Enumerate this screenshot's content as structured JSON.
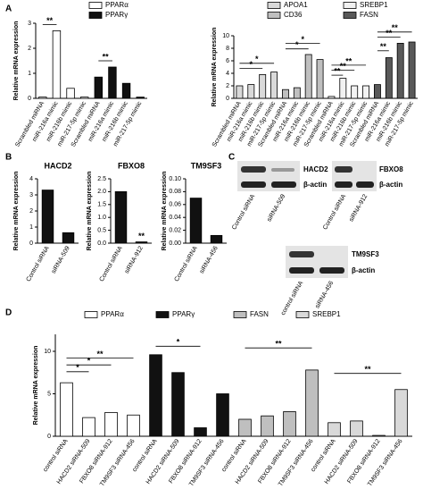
{
  "panels": [
    "A",
    "B",
    "C",
    "D"
  ],
  "blots": [
    {
      "target": "HACD2",
      "control": "β-actin",
      "lanes": [
        "Control siRNA",
        "siRNA-509"
      ]
    },
    {
      "target": "FBXO8",
      "control": "β-actin",
      "lanes": [
        "Control siRNA",
        "siRNA-912"
      ]
    },
    {
      "target": "TM9SF3",
      "control": "β-actin",
      "lanes": [
        "control siRNA",
        "siRNA-456"
      ]
    }
  ],
  "chart_data": [
    {
      "type": "bar",
      "y_label": "Relative mRNA expression",
      "categories": [
        "Scrambled miRNA",
        "miR-216a mimic",
        "miR-216b mimic",
        "miR-217-5p mimic",
        "Scrambled miRNA",
        "miR-216a mimic",
        "miR-216b mimic",
        "miR-217-5p mimic"
      ],
      "series": [
        {
          "name": "PPARα",
          "color": "#ffffff",
          "values": [
            0.05,
            2.7,
            0.4,
            0.05,
            null,
            null,
            null,
            null
          ]
        },
        {
          "name": "PPARγ",
          "color": "#111111",
          "values": [
            null,
            null,
            null,
            null,
            0.85,
            1.25,
            0.6,
            0.05
          ]
        }
      ],
      "ylim": [
        0,
        3
      ],
      "yticks": [
        0,
        1,
        2,
        3
      ],
      "annotations": [
        "**",
        "**"
      ]
    },
    {
      "type": "bar",
      "y_label": "Relative mRNA expression",
      "categories": [
        "Scrambled miRNA",
        "miR-216a mimic",
        "miR-216b mimic",
        "miR-217-5p mimic",
        "Scrambled miRNA",
        "miR-216a mimic",
        "miR-216b mimic",
        "miR-217-5p mimic",
        "Scrambled miRNA",
        "miR-216a mimic",
        "miR-216b mimic",
        "miR-217-5p mimic",
        "Scrambled miRNA",
        "miR-216a mimic",
        "miR-216b mimic",
        "miR-217-5p mimic"
      ],
      "series": [
        {
          "name": "APOA1",
          "color": "#d9d9d9",
          "values": [
            2,
            2.2,
            3.8,
            4.2,
            null,
            null,
            null,
            null,
            null,
            null,
            null,
            null,
            null,
            null,
            null,
            null
          ]
        },
        {
          "name": "CD36",
          "color": "#bfbfbf",
          "values": [
            null,
            null,
            null,
            null,
            1.4,
            1.7,
            7,
            6.2,
            null,
            null,
            null,
            null,
            null,
            null,
            null,
            null
          ]
        },
        {
          "name": "SREBP1",
          "color": "#f2f2f2",
          "values": [
            null,
            null,
            null,
            null,
            null,
            null,
            null,
            null,
            0.3,
            3.2,
            2,
            2,
            null,
            null,
            null,
            null
          ]
        },
        {
          "name": "FASN",
          "color": "#595959",
          "values": [
            null,
            null,
            null,
            null,
            null,
            null,
            null,
            null,
            null,
            null,
            null,
            null,
            2.2,
            6.5,
            8.8,
            9
          ]
        }
      ],
      "ylim": [
        0,
        10
      ],
      "yticks": [
        0,
        2,
        4,
        6,
        8,
        10
      ],
      "annotations": [
        "*",
        "*",
        "*",
        "*",
        "**",
        "**",
        "**",
        "**",
        "**",
        "**"
      ]
    },
    {
      "type": "bar",
      "title": "HACD2",
      "y_label": "Relative mRNA expression",
      "categories": [
        "Control siRNA",
        "siRNA-509"
      ],
      "values": [
        3.3,
        0.65
      ],
      "color": "#111111",
      "ylim": [
        0,
        4
      ],
      "yticks": [
        0,
        1,
        2,
        3,
        4
      ],
      "annotations": []
    },
    {
      "type": "bar",
      "title": "FBXO8",
      "y_label": "Relative mRNA expression",
      "categories": [
        "Control siRNA",
        "siRNA-912"
      ],
      "values": [
        2.0,
        0.05
      ],
      "color": "#111111",
      "ylim": [
        0,
        2.5
      ],
      "yticks": [
        {
          "value": 0,
          "label": "0.0"
        },
        0.5,
        {
          "value": 1,
          "label": "1.0"
        },
        1.5,
        {
          "value": 2,
          "label": "2.0"
        },
        2.5
      ],
      "annotations": [
        "**"
      ]
    },
    {
      "type": "bar",
      "title": "TM9SF3",
      "y_label": "Relative mRNA expression",
      "categories": [
        "Control siRNA",
        "siRNA-456"
      ],
      "values": [
        0.07,
        0.012
      ],
      "color": "#111111",
      "ylim": [
        0,
        0.1
      ],
      "yticks": [
        {
          "value": 0,
          "label": "0.00"
        },
        0.02,
        0.04,
        0.06,
        0.08,
        {
          "value": 0.1,
          "label": "0.10"
        }
      ],
      "annotations": []
    },
    {
      "type": "bar",
      "y_label": "Relative mRNA expression",
      "categories": [
        "control siRNA",
        "HACD2 siRNA-509",
        "FBXO8 siRNA-912",
        "TM9SF3 siRNA-456",
        "control siRNA",
        "HACD2 siRNA-509",
        "FBXO8 siRNA-912",
        "TM9SF3 siRNA-456",
        "control siRNA",
        "HACD2 siRNA-509",
        "FBXO8 siRNA-912",
        "TM9SF3 siRNA-456",
        "control siRNA",
        "HACD2 siRNA-509",
        "FBXO8 siRNA-912",
        "TM9SF3 siRNA-456"
      ],
      "series": [
        {
          "name": "PPARα",
          "color": "#ffffff",
          "values": [
            6.3,
            2.2,
            2.8,
            2.5,
            null,
            null,
            null,
            null,
            null,
            null,
            null,
            null,
            null,
            null,
            null,
            null
          ]
        },
        {
          "name": "PPARγ",
          "color": "#111111",
          "values": [
            null,
            null,
            null,
            null,
            9.6,
            7.5,
            1.0,
            5.0,
            null,
            null,
            null,
            null,
            null,
            null,
            null,
            null
          ]
        },
        {
          "name": "FASN",
          "color": "#bfbfbf",
          "values": [
            null,
            null,
            null,
            null,
            null,
            null,
            null,
            null,
            2.0,
            2.4,
            2.9,
            7.8,
            null,
            null,
            null,
            null
          ]
        },
        {
          "name": "SREBP1",
          "color": "#d9d9d9",
          "values": [
            null,
            null,
            null,
            null,
            null,
            null,
            null,
            null,
            null,
            null,
            null,
            null,
            1.6,
            1.8,
            0.1,
            5.5
          ]
        }
      ],
      "ylim": [
        0,
        12
      ],
      "yticks": [
        0,
        5,
        10
      ],
      "annotations": [
        "*",
        "*",
        "**",
        "*",
        "**",
        "**"
      ]
    }
  ]
}
